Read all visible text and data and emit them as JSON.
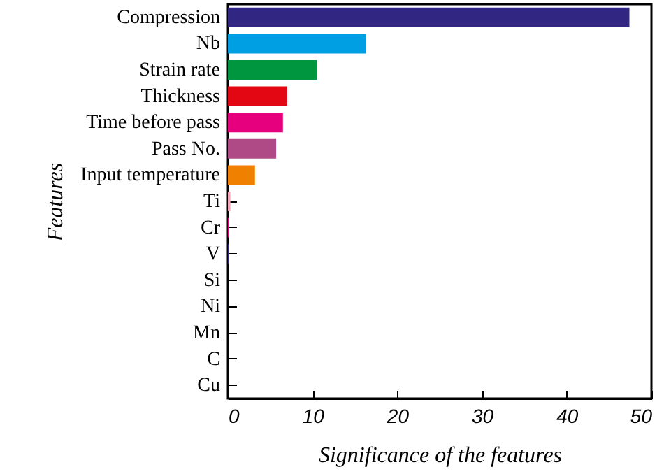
{
  "chart_data": {
    "type": "bar",
    "orientation": "horizontal",
    "xlabel": "Significance of the features",
    "ylabel": "Features",
    "categories": [
      "Compression",
      "Nb",
      "Strain rate",
      "Thickness",
      "Time before pass",
      "Pass No.",
      "Input temperature",
      "Ti",
      "Cr",
      "V",
      "Si",
      "Ni",
      "Mn",
      "C",
      "Cu"
    ],
    "values": [
      47.4,
      16.3,
      10.5,
      7.0,
      6.5,
      5.7,
      3.2,
      0.3,
      0.1,
      0.1,
      0,
      0,
      0,
      0,
      0
    ],
    "colors": [
      "#312783",
      "#009fe3",
      "#009640",
      "#e30613",
      "#e6007e",
      "#b04a86",
      "#f08000",
      "#f4a6b8",
      "#e6007e",
      "#312783",
      "#312783",
      "#312783",
      "#312783",
      "#312783",
      "#312783"
    ],
    "xlim": [
      0,
      50
    ],
    "xticks": [
      0,
      10,
      20,
      30,
      40,
      50
    ],
    "grid": false
  }
}
